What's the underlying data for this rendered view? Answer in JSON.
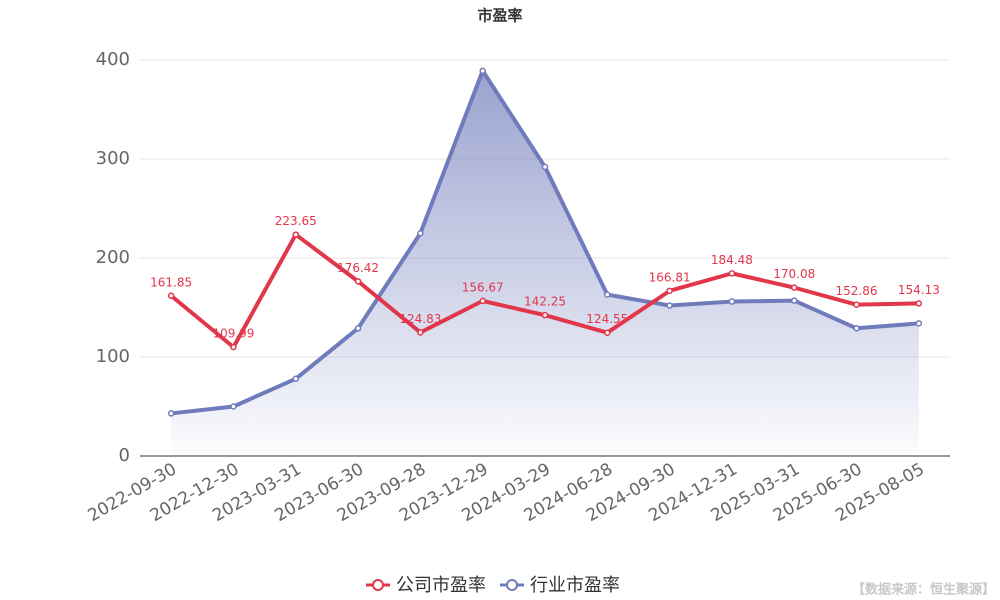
{
  "chart_data": {
    "type": "line",
    "title": "市盈率",
    "categories": [
      "2022-09-30",
      "2022-12-30",
      "2023-03-31",
      "2023-06-30",
      "2023-09-28",
      "2023-12-29",
      "2024-03-29",
      "2024-06-28",
      "2024-09-30",
      "2024-12-31",
      "2025-03-31",
      "2025-06-30",
      "2025-08-05"
    ],
    "series": [
      {
        "name": "公司市盈率",
        "color": "#e2364a",
        "values": [
          161.85,
          109.99,
          223.65,
          176.42,
          124.83,
          156.67,
          142.25,
          124.55,
          166.81,
          184.48,
          170.08,
          152.86,
          154.13
        ]
      },
      {
        "name": "行业市盈率",
        "color": "#6f7bbb",
        "values": [
          43,
          50,
          78,
          129,
          225,
          389,
          292,
          163,
          152,
          156,
          157,
          129,
          134
        ],
        "area": true
      }
    ],
    "ylim": [
      0,
      400
    ],
    "yticks": [
      0,
      100,
      200,
      300,
      400
    ],
    "grid": true,
    "source": "【数据来源：恒生聚源】"
  }
}
